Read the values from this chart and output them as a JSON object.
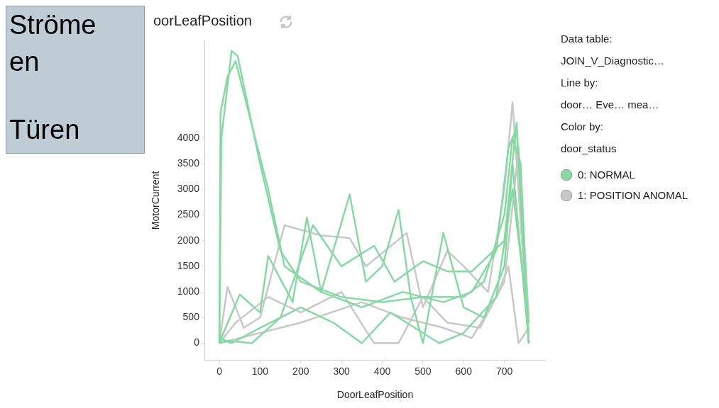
{
  "chart_data": {
    "type": "line",
    "title": "oorLeafPosition",
    "xlabel": "DoorLeafPosition",
    "ylabel": "MotorCurrent",
    "annotations": [
      "Ströme",
      "en",
      "Türen",
      "Data table:",
      "JOIN_V_Diagnostic…",
      "Line by:",
      "door…   Eve…   mea…",
      "Color by:",
      "door_status"
    ],
    "xlim": [
      -35,
      800
    ],
    "xticks": [
      0,
      100,
      200,
      300,
      400,
      500,
      600,
      700
    ],
    "ylim": [
      -330,
      5900
    ],
    "yticks": [
      0,
      500,
      1000,
      1500,
      2000,
      2500,
      3000,
      3500,
      4000
    ],
    "grid": false,
    "legend": "top right",
    "marker": "none",
    "line_style": "solid",
    "series": [
      {
        "name": "0: NORMAL",
        "color": "#88d8a4",
        "x": [
          0,
          5,
          30,
          45,
          100,
          150,
          200,
          300,
          400,
          500,
          600,
          650,
          700,
          720,
          740,
          760
        ],
        "values": [
          0,
          4000,
          5700,
          5600,
          3500,
          1800,
          1200,
          900,
          800,
          900,
          900,
          1200,
          2500,
          4000,
          3500,
          0
        ]
      },
      {
        "color": "#88d8a4",
        "x": [
          0,
          3,
          20,
          40,
          120,
          160,
          250,
          350,
          450,
          550,
          620,
          680,
          710,
          730,
          760
        ],
        "values": [
          0,
          4500,
          5200,
          5500,
          3000,
          1500,
          1000,
          700,
          1000,
          800,
          1000,
          1800,
          3800,
          4200,
          0
        ]
      },
      {
        "color": "#88d8a4",
        "x": [
          0,
          10,
          50,
          100,
          120,
          180,
          215,
          250,
          320,
          360,
          400,
          440,
          470,
          500,
          550,
          600,
          650,
          700,
          720,
          760
        ],
        "values": [
          0,
          200,
          950,
          600,
          1700,
          800,
          2450,
          1000,
          2900,
          1200,
          1500,
          2600,
          900,
          0,
          2150,
          700,
          500,
          1500,
          3500,
          0
        ]
      },
      {
        "color": "#88d8a4",
        "x": [
          0,
          20,
          80,
          150,
          230,
          300,
          380,
          430,
          500,
          560,
          620,
          700,
          730,
          760
        ],
        "values": [
          0,
          50,
          0,
          500,
          2300,
          1500,
          1900,
          1200,
          1600,
          1400,
          1400,
          2000,
          4300,
          0
        ]
      },
      {
        "color": "#88d8a4",
        "x": [
          0,
          30,
          100,
          200,
          280,
          350,
          420,
          480,
          540,
          600,
          680,
          720,
          760
        ],
        "values": [
          100,
          0,
          300,
          700,
          400,
          0,
          600,
          300,
          0,
          200,
          900,
          3000,
          400
        ]
      },
      {
        "name": "1: POSITION ANOMAL",
        "color": "#c8c8c8",
        "x": [
          0,
          20,
          60,
          100,
          160,
          250,
          320,
          360,
          460,
          500,
          560,
          600,
          660,
          700,
          720,
          760
        ],
        "values": [
          0,
          1100,
          300,
          500,
          2300,
          2100,
          2050,
          1500,
          2150,
          700,
          1800,
          1500,
          1000,
          3000,
          4700,
          0
        ]
      },
      {
        "color": "#c8c8c8",
        "x": [
          0,
          40,
          120,
          200,
          300,
          380,
          440,
          500,
          560,
          640,
          700,
          735,
          760
        ],
        "values": [
          0,
          400,
          900,
          600,
          1000,
          0,
          0,
          900,
          400,
          300,
          1200,
          3800,
          500
        ]
      },
      {
        "color": "#c8c8c8",
        "x": [
          0,
          50,
          200,
          350,
          450,
          550,
          620,
          680,
          710,
          735,
          760
        ],
        "values": [
          0,
          100,
          400,
          800,
          500,
          300,
          100,
          900,
          1500,
          0,
          300
        ]
      }
    ]
  }
}
